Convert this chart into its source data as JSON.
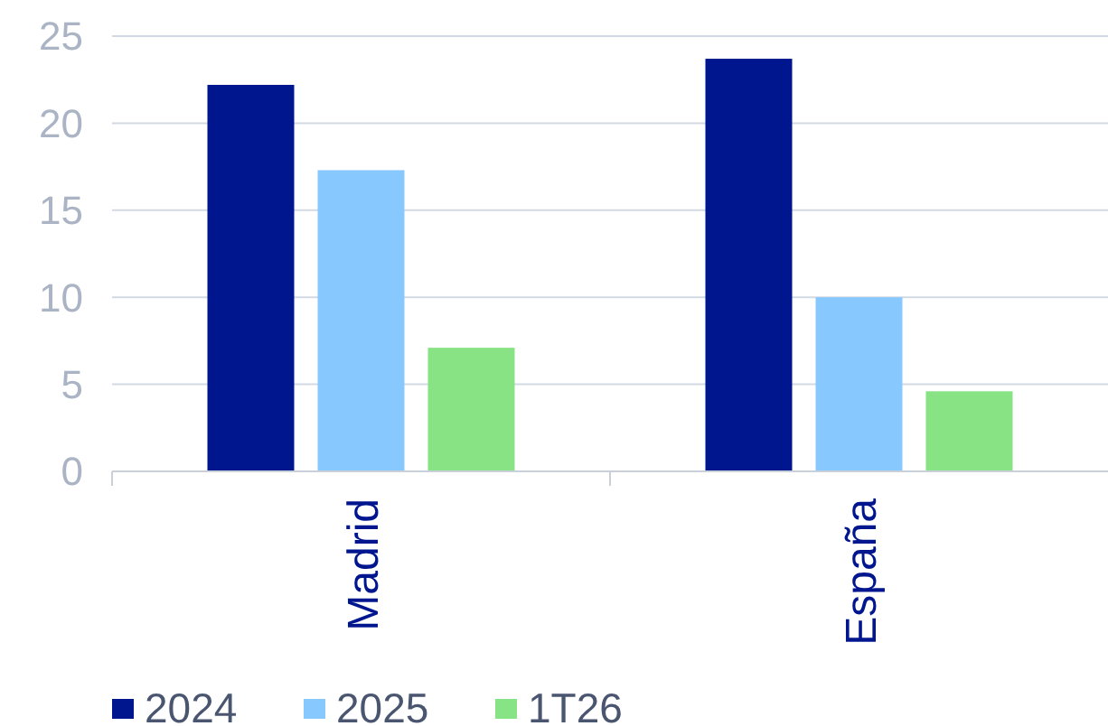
{
  "chart_data": {
    "type": "bar",
    "categories": [
      "Madrid",
      "España"
    ],
    "series": [
      {
        "name": "2024",
        "color": "#00168f",
        "values": [
          22.2,
          23.7
        ]
      },
      {
        "name": "2025",
        "color": "#87c8ff",
        "values": [
          17.3,
          10.0
        ]
      },
      {
        "name": "1T26",
        "color": "#88e384",
        "values": [
          7.1,
          4.6
        ]
      }
    ],
    "ylim": [
      0,
      25
    ],
    "yticks": [
      0,
      5,
      10,
      15,
      20,
      25
    ],
    "grid": "y",
    "legend": "bottom"
  }
}
